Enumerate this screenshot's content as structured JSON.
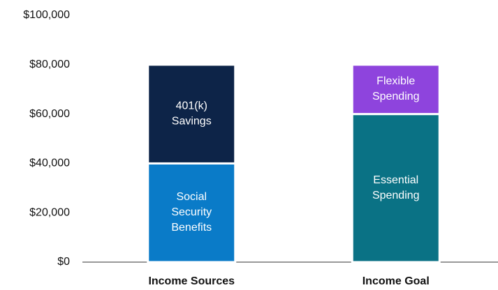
{
  "chart_data": {
    "type": "stacked_bar",
    "categories": [
      "Income Sources",
      "Income Goal"
    ],
    "series": [
      {
        "name": "Social Security Benefits",
        "color": "#0a7bc8",
        "values": [
          40000,
          null
        ]
      },
      {
        "name": "401(k) Savings",
        "color": "#0d2448",
        "values": [
          40000,
          null
        ]
      },
      {
        "name": "Essential Spending",
        "color": "#0a7285",
        "values": [
          null,
          60000
        ]
      },
      {
        "name": "Flexible Spending",
        "color": "#8e44dd",
        "values": [
          null,
          20000
        ]
      }
    ],
    "ylim": [
      0,
      100000
    ],
    "yticks": [
      {
        "value": 0,
        "label": "$0"
      },
      {
        "value": 20000,
        "label": "$20,000"
      },
      {
        "value": 40000,
        "label": "$40,000"
      },
      {
        "value": 60000,
        "label": "$60,000"
      },
      {
        "value": 80000,
        "label": "$80,000"
      },
      {
        "value": 100000,
        "label": "$100,000"
      }
    ],
    "grid": false
  }
}
